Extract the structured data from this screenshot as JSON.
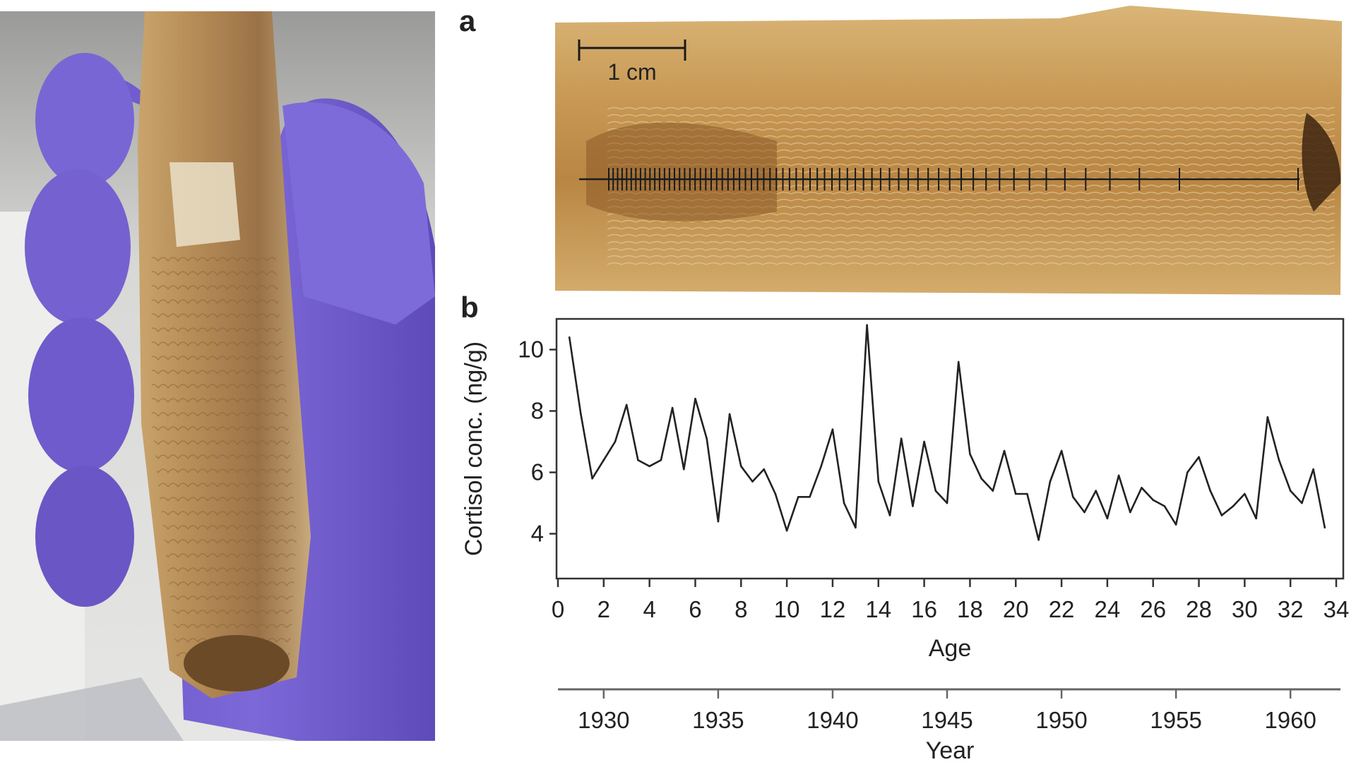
{
  "figure": {
    "panel_a_label": "a",
    "panel_b_label": "b",
    "scale_bar_label": "1 cm"
  },
  "chart_data": {
    "type": "line",
    "xlabel": "Age",
    "ylabel": "Cortisol conc. (ng/g)",
    "secondary_xlabel": "Year",
    "xlim": [
      0,
      34
    ],
    "ylim": [
      3,
      11
    ],
    "x_ticks": [
      "0",
      "2",
      "4",
      "6",
      "8",
      "10",
      "12",
      "14",
      "16",
      "18",
      "20",
      "22",
      "24",
      "26",
      "28",
      "30",
      "32",
      "34"
    ],
    "y_ticks": [
      "4",
      "6",
      "8",
      "10"
    ],
    "year_ticks": [
      "1930",
      "1935",
      "1940",
      "1945",
      "1950",
      "1955",
      "1960"
    ],
    "year_tick_ages": [
      2,
      7,
      12,
      17,
      22,
      27,
      32
    ],
    "grid": false,
    "line_color": "#222222",
    "series": [
      {
        "x": [
          0.5,
          1,
          1.5,
          2,
          2.5,
          3,
          3.5,
          4,
          4.5,
          5,
          5.5,
          6,
          6.5,
          7,
          7.5,
          8,
          8.5,
          9,
          9.5,
          10,
          10.5,
          11,
          11.5,
          12,
          12.5,
          13,
          13.5,
          14,
          14.5,
          15,
          15.5,
          16,
          16.5,
          17,
          17.5,
          18,
          18.5,
          19,
          19.5,
          20,
          20.5,
          21,
          21.5,
          22,
          22.5,
          23,
          23.5,
          24,
          24.5,
          25,
          25.5,
          26,
          26.5,
          27,
          27.5,
          28,
          28.5,
          29,
          29.5,
          30,
          30.5,
          31,
          31.5,
          32,
          32.5,
          33,
          33.5
        ],
        "values": [
          10.4,
          7.9,
          5.8,
          6.4,
          7.0,
          8.2,
          6.4,
          6.2,
          6.4,
          8.1,
          6.1,
          8.4,
          7.1,
          4.4,
          7.9,
          6.2,
          5.7,
          6.1,
          5.3,
          4.1,
          5.2,
          5.2,
          6.2,
          7.4,
          5.0,
          4.2,
          10.8,
          5.7,
          4.6,
          7.1,
          4.9,
          7.0,
          5.4,
          5.0,
          9.6,
          6.6,
          5.8,
          5.4,
          6.7,
          5.3,
          5.3,
          3.8,
          5.7,
          6.7,
          5.2,
          4.7,
          5.4,
          4.5,
          5.9,
          4.7,
          5.5,
          5.1,
          4.9,
          4.3,
          6.0,
          6.5,
          5.4,
          4.6,
          4.9,
          5.3,
          4.5,
          7.8,
          6.4,
          5.4,
          5.0,
          6.1,
          4.2
        ]
      }
    ]
  }
}
